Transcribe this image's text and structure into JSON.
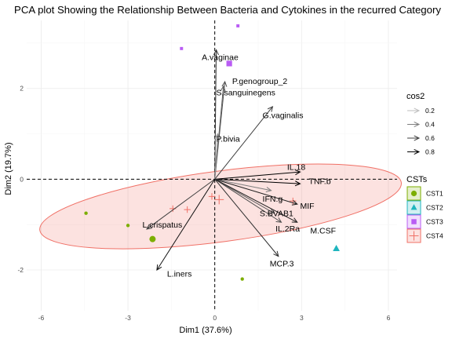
{
  "chart_data": {
    "type": "scatter",
    "title": "PCA plot Showing the Relationship Between Bacteria and Cytokines in the recurred Category",
    "xlabel": "Dim1 (37.6%)",
    "ylabel": "Dim2 (19.7%)",
    "xlim": [
      -6.5,
      6.3
    ],
    "ylim": [
      -2.9,
      3.5
    ],
    "x_ticks": [
      -6,
      -3,
      0,
      3,
      6
    ],
    "y_ticks": [
      -2,
      0,
      2
    ],
    "grid": true,
    "variables": [
      {
        "label": "A.vaginae",
        "x": 0.05,
        "y": 2.85,
        "lx": -0.45,
        "ly": 2.7,
        "cos2": 0.65
      },
      {
        "label": "P.genogroup_2",
        "x": 0.35,
        "y": 2.15,
        "lx": 0.6,
        "ly": 2.17,
        "cos2": 0.55
      },
      {
        "label": "S.sanguinegens",
        "x": 0.3,
        "y": 2.05,
        "lx": 0.05,
        "ly": 1.92,
        "cos2": 0.5
      },
      {
        "label": "G.vaginalis",
        "x": 2.0,
        "y": 1.6,
        "lx": 1.65,
        "ly": 1.42,
        "cos2": 0.6
      },
      {
        "label": "P.bivia",
        "x": 0.1,
        "y": 1.0,
        "lx": 0.05,
        "ly": 0.9,
        "cos2": 0.3
      },
      {
        "label": "IL.18",
        "x": 2.95,
        "y": 0.16,
        "lx": 2.5,
        "ly": 0.27,
        "cos2": 0.85
      },
      {
        "label": "TNF.b",
        "x": 2.95,
        "y": -0.1,
        "lx": 3.25,
        "ly": -0.04,
        "cos2": 0.85
      },
      {
        "label": "IFN.g",
        "x": 1.95,
        "y": -0.25,
        "lx": 1.65,
        "ly": -0.43,
        "cos2": 0.4
      },
      {
        "label": "MIF",
        "x": 2.85,
        "y": -0.55,
        "lx": 2.95,
        "ly": -0.58,
        "cos2": 0.7
      },
      {
        "label": "S.BVAB1",
        "x": 2.05,
        "y": -0.75,
        "lx": 1.55,
        "ly": -0.75,
        "cos2": 0.5
      },
      {
        "label": "IL.2Ra",
        "x": 2.3,
        "y": -0.95,
        "lx": 2.1,
        "ly": -1.08,
        "cos2": 0.55
      },
      {
        "label": "M.CSF",
        "x": 2.85,
        "y": -0.95,
        "lx": 3.3,
        "ly": -1.13,
        "cos2": 0.7
      },
      {
        "label": "MCP.3",
        "x": 2.2,
        "y": -1.7,
        "lx": 1.9,
        "ly": -1.85,
        "cos2": 0.65
      },
      {
        "label": "L.crispatus",
        "x": -2.35,
        "y": -1.1,
        "lx": -2.5,
        "ly": -1.0,
        "cos2": 0.6
      },
      {
        "label": "L.iners",
        "x": -2.0,
        "y": -2.0,
        "lx": -1.65,
        "ly": -2.08,
        "cos2": 0.75
      }
    ],
    "points": [
      {
        "x": -4.45,
        "y": -0.75,
        "cst": "CST1",
        "size": 1
      },
      {
        "x": -3.0,
        "y": -1.02,
        "cst": "CST1",
        "size": 1
      },
      {
        "x": -2.15,
        "y": -1.32,
        "cst": "CST1",
        "size": 2
      },
      {
        "x": 0.95,
        "y": -2.2,
        "cst": "CST1",
        "size": 1
      },
      {
        "x": 4.2,
        "y": -1.53,
        "cst": "CST2",
        "size": 2
      },
      {
        "x": 0.8,
        "y": 3.38,
        "cst": "CST3",
        "size": 1
      },
      {
        "x": -1.15,
        "y": 2.88,
        "cst": "CST3",
        "size": 1
      },
      {
        "x": 0.5,
        "y": 2.55,
        "cst": "CST3",
        "size": 2
      },
      {
        "x": -1.45,
        "y": -0.65,
        "cst": "CST4",
        "size": 1
      },
      {
        "x": -0.95,
        "y": -0.67,
        "cst": "CST4",
        "size": 1
      },
      {
        "x": -0.1,
        "y": -0.38,
        "cst": "CST4",
        "size": 1
      },
      {
        "x": 0.15,
        "y": -0.45,
        "cst": "CST4",
        "size": 2
      },
      {
        "x": 2.7,
        "y": -0.48,
        "cst": "CST4",
        "size": 1
      }
    ],
    "ellipse": {
      "cx": 0.2,
      "cy": -0.6,
      "rx": 6.3,
      "ry": 0.78,
      "angle_deg": 7.5,
      "group": "CST4"
    },
    "legend_cos2": {
      "title": "cos2",
      "values": [
        "0.2",
        "0.4",
        "0.6",
        "0.8"
      ]
    },
    "legend_cst": {
      "title": "CSTs",
      "items": [
        {
          "label": "CST1",
          "color": "#7CAE00"
        },
        {
          "label": "CST2",
          "color": "#1FB5BE"
        },
        {
          "label": "CST3",
          "color": "#B95CF4"
        },
        {
          "label": "CST4",
          "color": "#F07066"
        }
      ]
    }
  }
}
